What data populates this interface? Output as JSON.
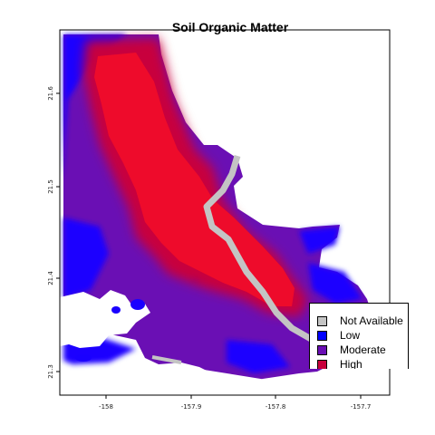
{
  "title": "Soil Organic Matter",
  "axes": {
    "x_ticks": [
      "-158",
      "-157.9",
      "-157.8",
      "-157.7"
    ],
    "y_ticks": [
      "21.3",
      "21.4",
      "21.5",
      "21.6"
    ]
  },
  "legend": [
    {
      "label": "Not Available",
      "color": "#c4c4c4"
    },
    {
      "label": "Low",
      "color": "#0000ff"
    },
    {
      "label": "Moderate",
      "color": "#6a0fb4"
    },
    {
      "label": "High",
      "color": "#c8003c"
    }
  ],
  "colors": {
    "high_core": "#ee0b2b",
    "background": "#ffffff"
  }
}
